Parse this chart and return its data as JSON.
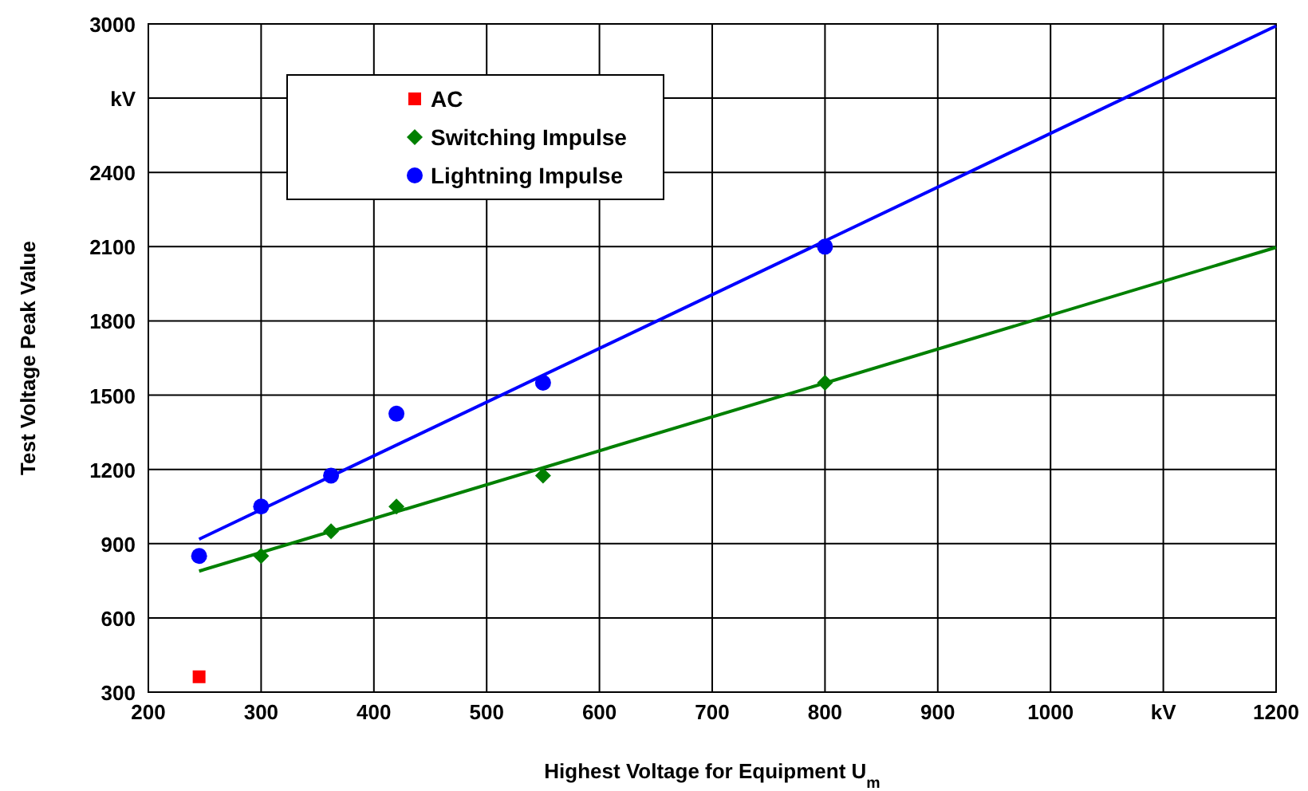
{
  "chart_data": {
    "type": "scatter",
    "xlabel": "Highest Voltage for Equipment U$_{m}$",
    "ylabel": "Test Voltage Peak Value",
    "xlim": [
      200,
      1200
    ],
    "xticks": [
      200,
      300,
      400,
      500,
      600,
      700,
      800,
      900,
      1000,
      {
        "value": 1100,
        "label": "kV"
      },
      1200
    ],
    "ylim": [
      300,
      3000
    ],
    "yticks": [
      300,
      600,
      900,
      1200,
      1500,
      1800,
      2100,
      2400,
      {
        "value": 2700,
        "label": "kV"
      },
      3000
    ],
    "grid": true,
    "legend": "top left",
    "series": [
      {
        "name": "AC",
        "color": "#ff0000",
        "marker": "square",
        "x": [
          245
        ],
        "values": [
          362
        ]
      },
      {
        "name": "Switching Impulse",
        "color": "#008000",
        "marker": "diamond",
        "x": [
          300,
          362,
          420,
          550,
          800
        ],
        "values": [
          850,
          950,
          1050,
          1175,
          1550
        ]
      },
      {
        "name": "Lightning Impulse",
        "color": "#0000ff",
        "marker": "circle",
        "x": [
          245,
          300,
          362,
          420,
          550,
          800
        ],
        "values": [
          850,
          1050,
          1175,
          1425,
          1550,
          2100
        ]
      },
      {
        "type": "line",
        "color": "#008000",
        "marker": "none",
        "x": [
          245,
          1200
        ],
        "values": [
          789,
          2097
        ]
      },
      {
        "type": "line",
        "color": "#0000ff",
        "marker": "none",
        "x": [
          245,
          1200
        ],
        "values": [
          918,
          2992
        ]
      }
    ]
  }
}
